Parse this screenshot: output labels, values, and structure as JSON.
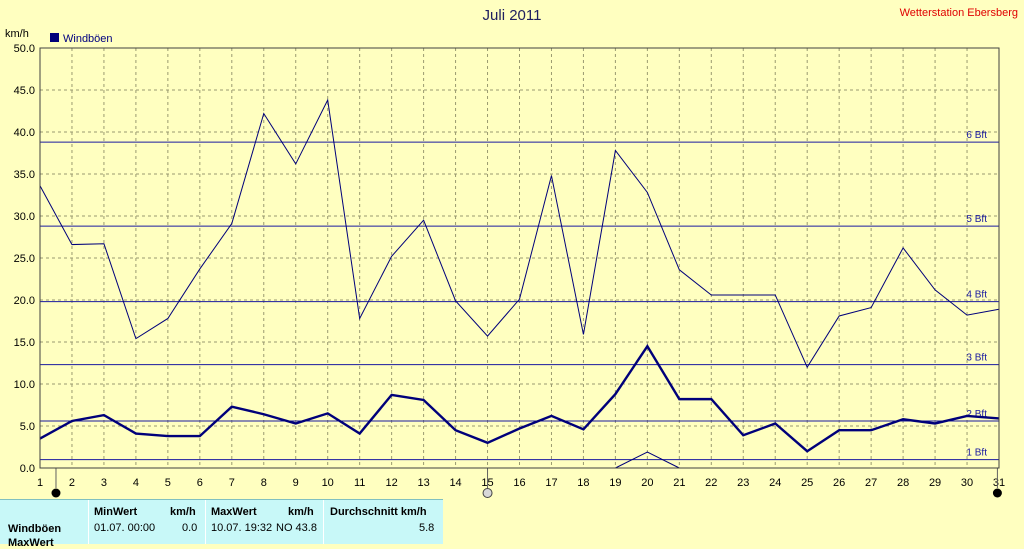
{
  "title": "Juli 2011",
  "station": "Wetterstation Ebersberg",
  "unit_label": "km/h",
  "colors": {
    "background": "#ffffc0",
    "grid": "#9a9a70",
    "series": "#00007a",
    "bft": "#1a1aa0",
    "station": "#e00000",
    "stats_bg": "#c8f8f8"
  },
  "chart_data": {
    "type": "line",
    "title": "Juli 2011",
    "ylabel": "km/h",
    "xlabel": "",
    "x": [
      1,
      2,
      3,
      4,
      5,
      6,
      7,
      8,
      9,
      10,
      11,
      12,
      13,
      14,
      15,
      16,
      17,
      18,
      19,
      20,
      21,
      22,
      23,
      24,
      25,
      26,
      27,
      28,
      29,
      30,
      31
    ],
    "x_ticks": [
      "1",
      "2",
      "3",
      "4",
      "5",
      "6",
      "7",
      "8",
      "9",
      "10",
      "11",
      "12",
      "13",
      "14",
      "15",
      "16",
      "17",
      "18",
      "19",
      "20",
      "21",
      "22",
      "23",
      "24",
      "25",
      "26",
      "27",
      "28",
      "29",
      "30",
      "31"
    ],
    "y_ticks": [
      "0.0",
      "5.0",
      "10.0",
      "15.0",
      "20.0",
      "25.0",
      "30.0",
      "35.0",
      "40.0",
      "45.0",
      "50.0"
    ],
    "ylim": [
      0,
      50
    ],
    "xlim": [
      1,
      31
    ],
    "grid": true,
    "legend": "top-left",
    "series": [
      {
        "name": "Windböen",
        "style": "bold",
        "values": [
          3.5,
          5.6,
          6.3,
          4.1,
          3.8,
          3.8,
          7.3,
          6.4,
          5.3,
          6.5,
          4.1,
          8.7,
          8.1,
          4.5,
          3.0,
          4.7,
          6.2,
          4.6,
          8.8,
          14.5,
          8.2,
          8.2,
          3.9,
          5.3,
          2.0,
          4.5,
          4.5,
          5.8,
          5.3,
          6.2,
          5.9
        ]
      },
      {
        "style": "thin",
        "values": [
          33.6,
          26.6,
          26.7,
          15.4,
          17.8,
          23.7,
          29.1,
          42.2,
          36.2,
          43.8,
          17.8,
          25.2,
          29.5,
          19.9,
          15.7,
          20.1,
          34.8,
          15.9,
          37.8,
          32.8,
          23.6,
          20.6,
          20.6,
          20.6,
          12.0,
          18.1,
          19.1,
          26.2,
          21.2,
          18.2,
          18.9
        ]
      },
      {
        "style": "thin",
        "x": [
          19,
          20,
          21
        ],
        "values": [
          0,
          1.9,
          0
        ]
      }
    ],
    "bft_lines": [
      {
        "label": "1 Bft",
        "value": 1.0
      },
      {
        "label": "2 Bft",
        "value": 5.6
      },
      {
        "label": "3 Bft",
        "value": 12.3
      },
      {
        "label": "4 Bft",
        "value": 19.8
      },
      {
        "label": "5 Bft",
        "value": 28.8
      },
      {
        "label": "6 Bft",
        "value": 38.8
      }
    ],
    "moon_markers": [
      {
        "day": 1.5,
        "phase": "new"
      },
      {
        "day": 15.0,
        "phase": "full"
      },
      {
        "day": 30.95,
        "phase": "new"
      }
    ]
  },
  "stats": {
    "col_min": "MinWert",
    "col_min_unit": "km/h",
    "col_max": "MaxWert",
    "col_max_unit": "km/h",
    "col_avg": "Durchschnitt km/h",
    "row1_label": "Windböen",
    "row1_min_date": "01.07.  00:00",
    "row1_min_val": "0.0",
    "row1_max_date": "10.07.  19:32",
    "row1_max_dir_val": "NO 43.8",
    "row1_avg": "5.8",
    "row2_label": "MaxWert"
  }
}
